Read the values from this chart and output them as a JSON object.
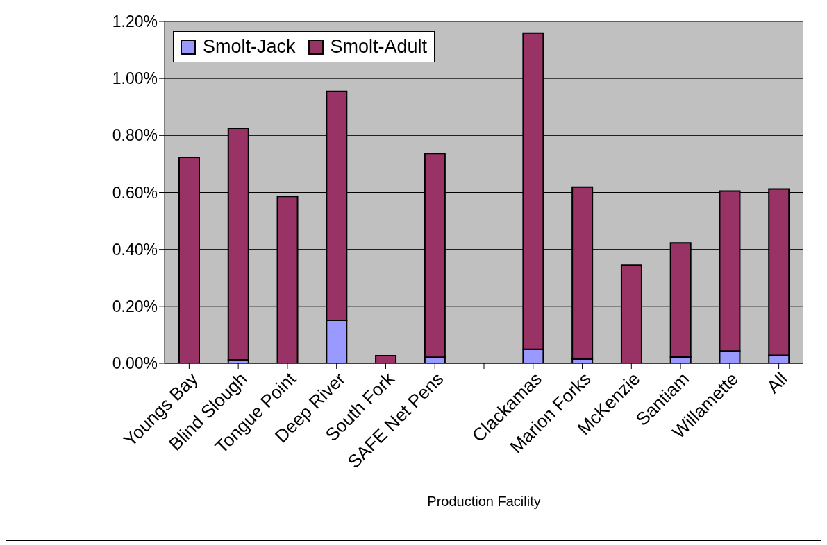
{
  "chart_data": {
    "type": "bar",
    "xlabel": "Production Facility",
    "stacked": true,
    "categories": [
      "Youngs Bay",
      "Blind Slough",
      "Tongue Point",
      "Deep River",
      "South Fork",
      "SAFE Net Pens",
      null,
      "Clackamas",
      "Marion Forks",
      "McKenzie",
      "Santiam",
      "Willamette",
      "All"
    ],
    "series": [
      {
        "name": "Smolt-Jack",
        "color": "#9999ff",
        "values": [
          null,
          0.012,
          null,
          0.151,
          0,
          0.021,
          null,
          0.049,
          0.015,
          null,
          0.022,
          0.043,
          0.028
        ]
      },
      {
        "name": "Smolt-Adult",
        "color": "#993366",
        "values": [
          0.723,
          0.813,
          0.586,
          0.804,
          0.027,
          0.716,
          null,
          1.11,
          0.604,
          0.345,
          0.401,
          0.562,
          0.584
        ]
      }
    ],
    "ylim": [
      0,
      1.2
    ],
    "yticks": [
      {
        "value": 0,
        "label": "0.00%"
      },
      {
        "value": 0.2,
        "label": "0.20%"
      },
      {
        "value": 0.4,
        "label": "0.40%"
      },
      {
        "value": 0.6,
        "label": "0.60%"
      },
      {
        "value": 0.8,
        "label": "0.80%"
      },
      {
        "value": 1,
        "label": "1.00%"
      },
      {
        "value": 1.2,
        "label": "1.20%"
      }
    ],
    "grid": "y",
    "legend": "top left"
  }
}
